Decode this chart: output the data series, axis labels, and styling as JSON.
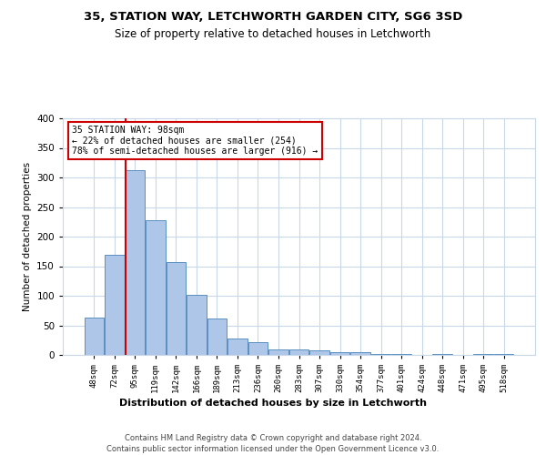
{
  "title_line1": "35, STATION WAY, LETCHWORTH GARDEN CITY, SG6 3SD",
  "title_line2": "Size of property relative to detached houses in Letchworth",
  "xlabel": "Distribution of detached houses by size in Letchworth",
  "ylabel": "Number of detached properties",
  "categories": [
    "48sqm",
    "72sqm",
    "95sqm",
    "119sqm",
    "142sqm",
    "166sqm",
    "189sqm",
    "213sqm",
    "236sqm",
    "260sqm",
    "283sqm",
    "307sqm",
    "330sqm",
    "354sqm",
    "377sqm",
    "401sqm",
    "424sqm",
    "448sqm",
    "471sqm",
    "495sqm",
    "518sqm"
  ],
  "values": [
    63,
    170,
    313,
    228,
    157,
    102,
    62,
    28,
    21,
    9,
    9,
    8,
    5,
    4,
    2,
    1,
    0,
    1,
    0,
    1,
    2
  ],
  "bar_color": "#aec6e8",
  "bar_edge_color": "#5a8fc0",
  "property_bar_index": 2,
  "annotation_text": "35 STATION WAY: 98sqm\n← 22% of detached houses are smaller (254)\n78% of semi-detached houses are larger (916) →",
  "annotation_box_color": "#ffffff",
  "annotation_box_edge_color": "#cc0000",
  "vline_color": "#cc0000",
  "footer_text": "Contains HM Land Registry data © Crown copyright and database right 2024.\nContains public sector information licensed under the Open Government Licence v3.0.",
  "background_color": "#ffffff",
  "grid_color": "#c8d8e8",
  "ylim": [
    0,
    400
  ],
  "yticks": [
    0,
    50,
    100,
    150,
    200,
    250,
    300,
    350,
    400
  ]
}
